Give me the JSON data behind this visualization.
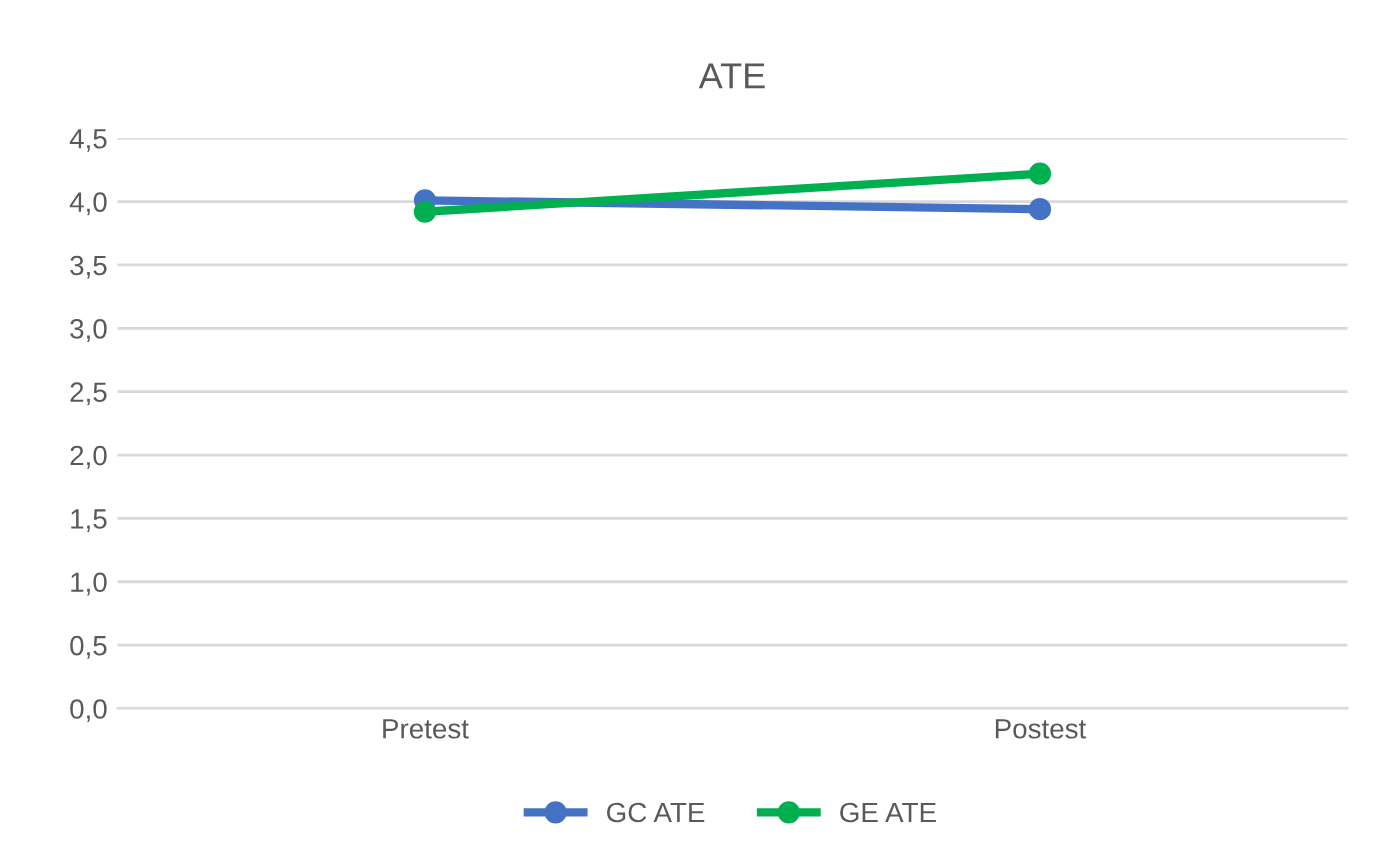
{
  "chart_data": {
    "type": "line",
    "title": "ATE",
    "categories": [
      "Pretest",
      "Postest"
    ],
    "series": [
      {
        "name": "GC ATE",
        "color": "#4472c4",
        "values": [
          4.01,
          3.94
        ]
      },
      {
        "name": "GE ATE",
        "color": "#00b050",
        "values": [
          3.92,
          4.22
        ]
      }
    ],
    "ylim": [
      0,
      4.5
    ],
    "yticks": [
      {
        "value": 0,
        "label": "0,0"
      },
      {
        "value": 0.5,
        "label": "0,5"
      },
      {
        "value": 1,
        "label": "1,0"
      },
      {
        "value": 1.5,
        "label": "1,5"
      },
      {
        "value": 2,
        "label": "2,0"
      },
      {
        "value": 2.5,
        "label": "2,5"
      },
      {
        "value": 3,
        "label": "3,0"
      },
      {
        "value": 3.5,
        "label": "3,5"
      },
      {
        "value": 4,
        "label": "4,0"
      },
      {
        "value": 4.5,
        "label": "4,5"
      }
    ],
    "grid": "y",
    "legend": "bottom",
    "marker": "circle",
    "line_style": "solid"
  }
}
